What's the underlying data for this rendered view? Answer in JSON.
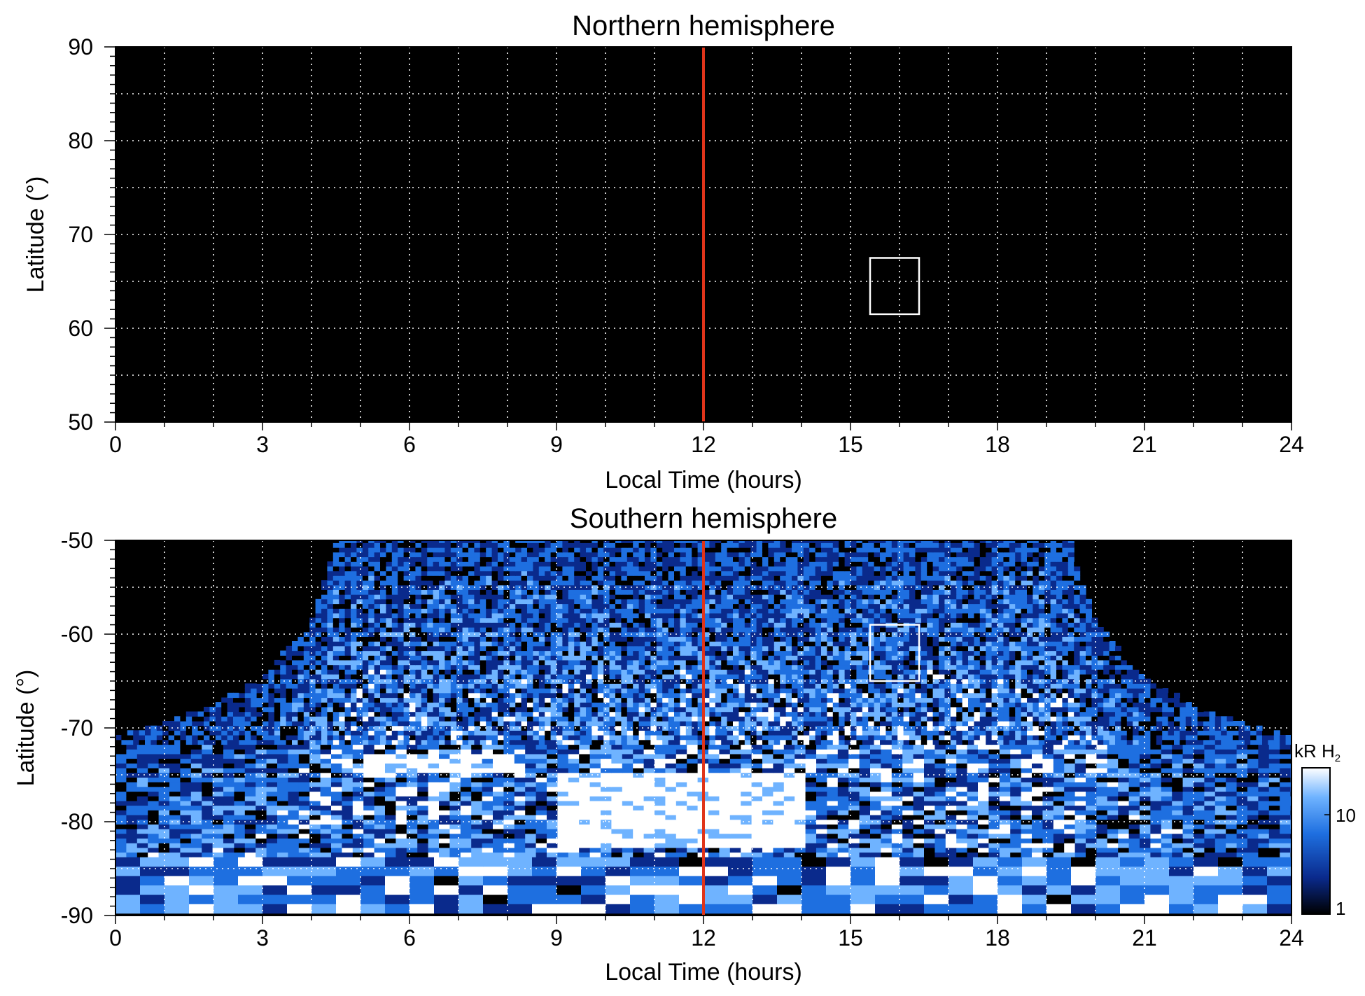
{
  "chart_data": [
    {
      "type": "heatmap",
      "title": "Northern hemisphere",
      "xlabel": "Local Time (hours)",
      "ylabel": "Latitude (°)",
      "xlim": [
        0,
        24
      ],
      "ylim": [
        50,
        90
      ],
      "x_ticks": [
        "0",
        "3",
        "6",
        "9",
        "12",
        "15",
        "18",
        "21",
        "24"
      ],
      "y_ticks": [
        "90",
        "80",
        "70",
        "60",
        "50"
      ],
      "grid": true,
      "background": "no emission (black)",
      "marker_line": {
        "x": 12,
        "color": "#e0341a"
      },
      "box": {
        "x": [
          15.4,
          16.4
        ],
        "y": [
          61.5,
          67.5
        ],
        "color": "#ffffff"
      }
    },
    {
      "type": "heatmap",
      "title": "Southern hemisphere",
      "xlabel": "Local Time (hours)",
      "ylabel": "Latitude (°)",
      "xlim": [
        0,
        24
      ],
      "ylim": [
        -90,
        -50
      ],
      "x_ticks": [
        "0",
        "3",
        "6",
        "9",
        "12",
        "15",
        "18",
        "21",
        "24"
      ],
      "y_ticks": [
        "-50",
        "-60",
        "-70",
        "-80",
        "-90"
      ],
      "grid": true,
      "coverage_boundary_latitude_by_local_time": {
        "local_time": [
          0,
          1,
          2,
          3,
          4,
          4.5,
          12,
          19.5,
          20,
          21,
          22,
          23,
          24
        ],
        "latitude": [
          -70.8,
          -69.5,
          -67.5,
          -64.5,
          -58.5,
          -50,
          -50,
          -50,
          -58.5,
          -64.5,
          -67.5,
          -69.5,
          -70.8
        ]
      },
      "bright_regions": [
        {
          "local_time": [
            5,
            8
          ],
          "latitude": [
            -75,
            -73
          ],
          "level": "high"
        },
        {
          "local_time": [
            9,
            14
          ],
          "latitude": [
            -83,
            -75
          ],
          "level": "very high"
        }
      ],
      "marker_line": {
        "x": 12,
        "color": "#e0341a"
      },
      "box": {
        "x": [
          15.4,
          16.4
        ],
        "y": [
          -65,
          -59
        ],
        "color": "#ffffff"
      }
    }
  ],
  "colorbar": {
    "label_main": "kR H",
    "label_sub": "2",
    "tick_labels": [
      "10",
      "1"
    ],
    "scale": "log",
    "range": [
      1,
      30
    ],
    "colors": [
      "#000000",
      "#0a2a8c",
      "#1e6fe0",
      "#6fb3ff",
      "#ffffff"
    ]
  }
}
